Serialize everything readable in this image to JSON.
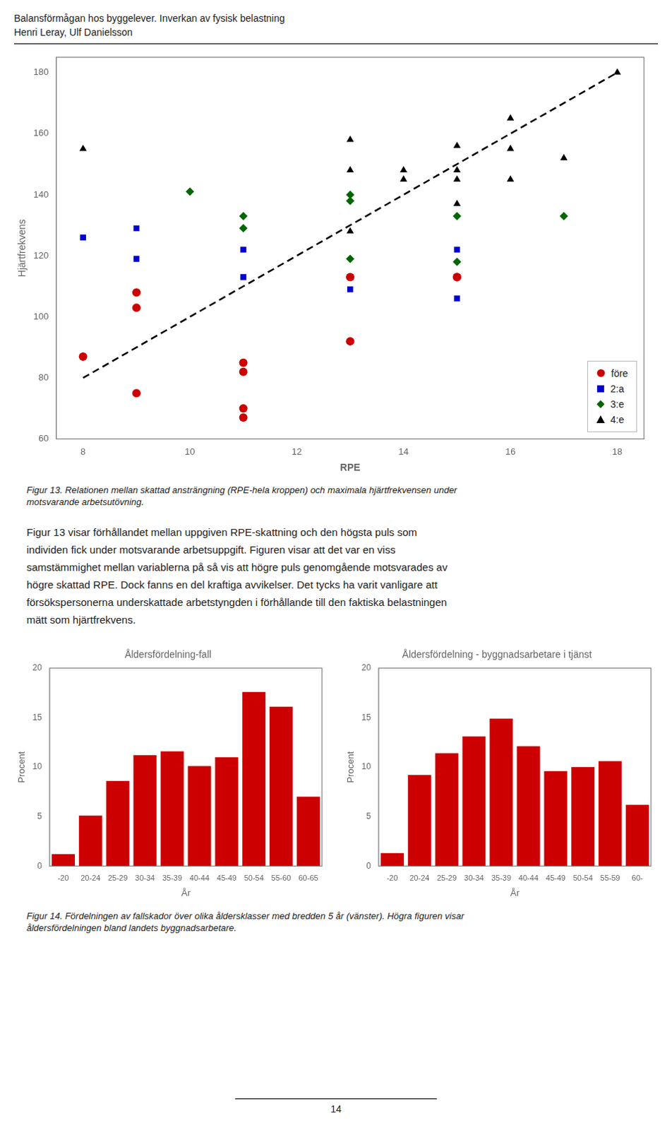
{
  "title": "Balansförmågan hos byggelever. Inverkan av fysisk belastning",
  "subtitle": "Henri Leray, Ulf Danielsson",
  "annotations": {
    "figure13": [
      "Figur 13. Relationen mellan skattad ansträngning (RPE-hela kroppen) och maximala hjärtfrekvensen under",
      "motsvarande arbetsutövning."
    ],
    "body": [
      "Figur 13 visar förhållandet mellan uppgiven RPE-skattning och den högsta puls som",
      "individen fick under motsvarande arbetsuppgift. Figuren visar att det var en viss",
      "samstämmighet mellan variablerna på så vis att högre puls genomgående motsvarades av",
      "högre skattad RPE. Dock fanns en del kraftiga avvikelser. Det tycks ha varit vanligare att",
      "försökspersonerna underskattade arbetstyngden i förhållande till den faktiska belastningen",
      "mätt som hjärtfrekvens."
    ],
    "figure14": [
      "Figur 14. Fördelningen av fallskador över olika åldersklasser med bredden 5 år (vänster). Högra figuren visar",
      "åldersfördelningen bland landets byggnadsarbetare."
    ],
    "page_number": "14"
  },
  "chart_data": [
    {
      "type": "scatter",
      "xlabel": "RPE",
      "ylabel": "Hjärtfrekvens",
      "xlim": [
        7.5,
        18.5
      ],
      "ylim": [
        60,
        185
      ],
      "xticks": [
        8,
        10,
        12,
        14,
        16,
        18
      ],
      "yticks": [
        60,
        80,
        100,
        120,
        140,
        160,
        180
      ],
      "grid": false,
      "legend": "lower right",
      "series": [
        {
          "type": "line",
          "line_style": "dashed",
          "color": "#000000",
          "x": [
            8,
            18
          ],
          "values": [
            80,
            180
          ]
        },
        {
          "name": "före",
          "color": "#cc0000",
          "marker": "circle",
          "x": [
            8,
            9,
            9,
            9,
            11,
            11,
            11,
            11,
            13,
            13,
            15,
            15
          ],
          "values": [
            87,
            108,
            103,
            75,
            85,
            82,
            70,
            67,
            113,
            92,
            113,
            113
          ]
        },
        {
          "name": "2:a",
          "color": "#0000cc",
          "marker": "square",
          "x": [
            8,
            9,
            9,
            11,
            11,
            13,
            13,
            15,
            15
          ],
          "values": [
            126,
            129,
            119,
            122,
            113,
            113,
            109,
            122,
            106
          ]
        },
        {
          "name": "3:e",
          "color": "#006600",
          "marker": "diamond",
          "x": [
            10,
            11,
            11,
            13,
            13,
            13,
            15,
            15,
            17
          ],
          "values": [
            141,
            133,
            129,
            140,
            138,
            119,
            133,
            118,
            133
          ]
        },
        {
          "name": "4:e",
          "color": "#000000",
          "marker": "triangle",
          "x": [
            8,
            13,
            13,
            13,
            14,
            14,
            15,
            15,
            15,
            15,
            16,
            16,
            16,
            17,
            18
          ],
          "values": [
            155,
            158,
            148,
            128,
            148,
            145,
            156,
            148,
            145,
            137,
            165,
            155,
            145,
            152,
            180
          ]
        }
      ]
    },
    {
      "type": "bar",
      "title": "Åldersfördelning-fall",
      "xlabel": "År",
      "ylabel": "Procent",
      "categories": [
        "-20",
        "20-24",
        "25-29",
        "30-34",
        "35-39",
        "40-44",
        "45-49",
        "50-54",
        "55-60",
        "60-65"
      ],
      "values": [
        1.2,
        5.1,
        8.6,
        11.2,
        11.6,
        10.1,
        11.0,
        17.6,
        16.1,
        7.0
      ],
      "color": "#cc0000",
      "ylim": [
        0,
        20
      ],
      "yticks": [
        0,
        5,
        10,
        15,
        20
      ],
      "grid": false
    },
    {
      "type": "bar",
      "title": "Åldersfördelning - byggnadsarbetare i tjänst",
      "xlabel": "År",
      "ylabel": "Procent",
      "categories": [
        "-20",
        "20-24",
        "25-29",
        "30-34",
        "35-39",
        "40-44",
        "45-49",
        "50-54",
        "55-59",
        "60-"
      ],
      "values": [
        1.3,
        9.2,
        11.4,
        13.1,
        14.9,
        12.1,
        9.6,
        10.0,
        10.6,
        6.2
      ],
      "color": "#cc0000",
      "ylim": [
        0,
        20
      ],
      "yticks": [
        0,
        5,
        10,
        15,
        20
      ],
      "grid": false
    }
  ]
}
